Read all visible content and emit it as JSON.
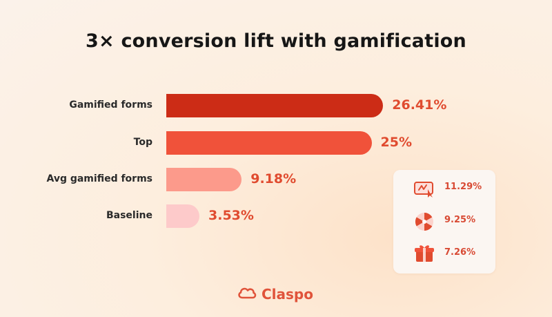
{
  "title": "3× conversion lift with gamification",
  "chart_data": {
    "type": "bar",
    "orientation": "horizontal",
    "categories": [
      "Gamified forms",
      "Top",
      "Avg gamified forms",
      "Baseline"
    ],
    "values": [
      26.41,
      25,
      9.18,
      3.53
    ],
    "value_labels": [
      "26.41%",
      "25%",
      "9.18%",
      "3.53%"
    ],
    "colors": [
      "#cc2c16",
      "#f0523a",
      "#fc9a8b",
      "#fdcaca"
    ],
    "title": "3× conversion lift with gamification",
    "xlabel": "",
    "ylabel": "",
    "grid": false
  },
  "side_panel": {
    "items": [
      {
        "icon": "scratch-card-icon",
        "value_label": "11.29%",
        "value": 11.29
      },
      {
        "icon": "spin-wheel-icon",
        "value_label": "9.25%",
        "value": 9.25
      },
      {
        "icon": "gift-box-icon",
        "value_label": "7.26%",
        "value": 7.26
      }
    ]
  },
  "brand": {
    "name": "Claspo",
    "color": "#e0533a"
  }
}
